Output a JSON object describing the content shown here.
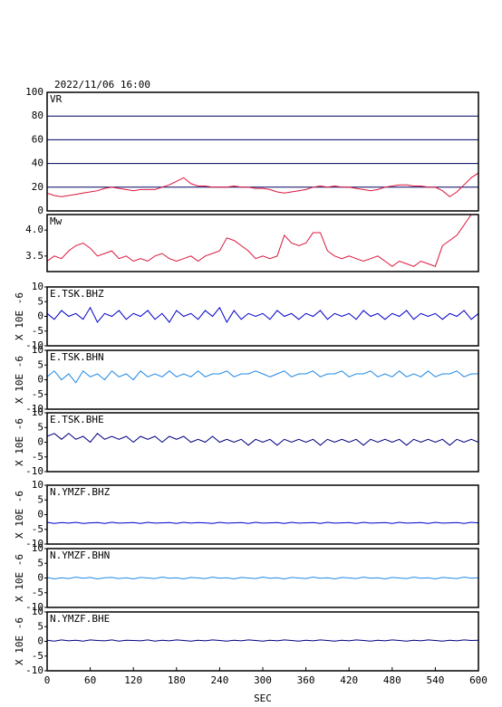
{
  "chart_data": [
    {
      "type": "line",
      "title": "2022/11/06 16:00",
      "label": "VR",
      "x": [
        0,
        10,
        20,
        30,
        40,
        50,
        60,
        70,
        80,
        90,
        100,
        110,
        120,
        130,
        140,
        150,
        160,
        170,
        180,
        190,
        200,
        210,
        220,
        230,
        240,
        250,
        260,
        270,
        280,
        290,
        300,
        310,
        320,
        330,
        340,
        350,
        360,
        370,
        380,
        390,
        400,
        410,
        420,
        430,
        440,
        450,
        460,
        470,
        480,
        490,
        500,
        510,
        520,
        530,
        540,
        550,
        560,
        570,
        580,
        590,
        600
      ],
      "series": [
        {
          "color": "#dc143c",
          "values": [
            15,
            13,
            12,
            13,
            14,
            15,
            16,
            17,
            19,
            20,
            19,
            18,
            17,
            18,
            18,
            18,
            20,
            22,
            25,
            28,
            23,
            21,
            21,
            20,
            20,
            20,
            21,
            20,
            20,
            19,
            19,
            18,
            16,
            15,
            16,
            17,
            18,
            20,
            21,
            20,
            21,
            20,
            20,
            19,
            18,
            17,
            18,
            20,
            21,
            22,
            22,
            21,
            21,
            20,
            20,
            17,
            12,
            16,
            22,
            28,
            32
          ]
        }
      ],
      "xlim": [
        0,
        600
      ],
      "ylim": [
        0,
        100
      ],
      "yticks": [
        0,
        20,
        40,
        60,
        80,
        100
      ],
      "grid": true
    },
    {
      "type": "line",
      "label": "Mw",
      "x": [
        0,
        10,
        20,
        30,
        40,
        50,
        60,
        70,
        80,
        90,
        100,
        110,
        120,
        130,
        140,
        150,
        160,
        170,
        180,
        190,
        200,
        210,
        220,
        230,
        240,
        250,
        260,
        270,
        280,
        290,
        300,
        310,
        320,
        330,
        340,
        350,
        360,
        370,
        380,
        390,
        400,
        410,
        420,
        430,
        440,
        450,
        460,
        470,
        480,
        490,
        500,
        510,
        520,
        530,
        540,
        550,
        560,
        570,
        580,
        590,
        600
      ],
      "series": [
        {
          "color": "#dc143c",
          "values": [
            3.4,
            3.5,
            3.45,
            3.6,
            3.7,
            3.75,
            3.65,
            3.5,
            3.55,
            3.6,
            3.45,
            3.5,
            3.4,
            3.45,
            3.4,
            3.5,
            3.55,
            3.45,
            3.4,
            3.45,
            3.5,
            3.4,
            3.5,
            3.55,
            3.6,
            3.85,
            3.8,
            3.7,
            3.6,
            3.45,
            3.5,
            3.45,
            3.5,
            3.9,
            3.75,
            3.7,
            3.75,
            3.95,
            3.95,
            3.6,
            3.5,
            3.45,
            3.5,
            3.45,
            3.4,
            3.45,
            3.5,
            3.4,
            3.3,
            3.4,
            3.35,
            3.3,
            3.4,
            3.35,
            3.3,
            3.7,
            3.8,
            3.9,
            4.1,
            4.3,
            4.3
          ]
        }
      ],
      "xlim": [
        0,
        600
      ],
      "ylim": [
        3.2,
        4.3
      ],
      "yticks": [
        3.5,
        {
          "value": 4,
          "label": "4.0"
        }
      ]
    },
    {
      "type": "line",
      "label": "E.TSK.BHZ",
      "ylabel": "X 10E -6",
      "x": [
        0,
        10,
        20,
        30,
        40,
        50,
        60,
        70,
        80,
        90,
        100,
        110,
        120,
        130,
        140,
        150,
        160,
        170,
        180,
        190,
        200,
        210,
        220,
        230,
        240,
        250,
        260,
        270,
        280,
        290,
        300,
        310,
        320,
        330,
        340,
        350,
        360,
        370,
        380,
        390,
        400,
        410,
        420,
        430,
        440,
        450,
        460,
        470,
        480,
        490,
        500,
        510,
        520,
        530,
        540,
        550,
        560,
        570,
        580,
        590,
        600
      ],
      "series": [
        {
          "color": "#0000cc",
          "values": [
            1,
            -1,
            2,
            0,
            1,
            -1,
            3,
            -2,
            1,
            0,
            2,
            -1,
            1,
            0,
            2,
            -1,
            1,
            -2,
            2,
            0,
            1,
            -1,
            2,
            0,
            3,
            -2,
            2,
            -1,
            1,
            0,
            1,
            -1,
            2,
            0,
            1,
            -1,
            1,
            0,
            2,
            -1,
            1,
            0,
            1,
            -1,
            2,
            0,
            1,
            -1,
            1,
            0,
            2,
            -1,
            1,
            0,
            1,
            -1,
            1,
            0,
            2,
            -1,
            1
          ]
        }
      ],
      "xlim": [
        0,
        600
      ],
      "ylim": [
        -10,
        10
      ],
      "yticks": [
        -10,
        -5,
        0,
        5,
        10
      ]
    },
    {
      "type": "line",
      "label": "E.TSK.BHN",
      "ylabel": "X 10E -6",
      "x": [
        0,
        10,
        20,
        30,
        40,
        50,
        60,
        70,
        80,
        90,
        100,
        110,
        120,
        130,
        140,
        150,
        160,
        170,
        180,
        190,
        200,
        210,
        220,
        230,
        240,
        250,
        260,
        270,
        280,
        290,
        300,
        310,
        320,
        330,
        340,
        350,
        360,
        370,
        380,
        390,
        400,
        410,
        420,
        430,
        440,
        450,
        460,
        470,
        480,
        490,
        500,
        510,
        520,
        530,
        540,
        550,
        560,
        570,
        580,
        590,
        600
      ],
      "series": [
        {
          "color": "#1e88e5",
          "values": [
            1,
            3,
            0,
            2,
            -1,
            3,
            1,
            2,
            0,
            3,
            1,
            2,
            0,
            3,
            1,
            2,
            1,
            3,
            1,
            2,
            1,
            3,
            1,
            2,
            2,
            3,
            1,
            2,
            2,
            3,
            2,
            1,
            2,
            3,
            1,
            2,
            2,
            3,
            1,
            2,
            2,
            3,
            1,
            2,
            2,
            3,
            1,
            2,
            1,
            3,
            1,
            2,
            1,
            3,
            1,
            2,
            2,
            3,
            1,
            2,
            2
          ]
        }
      ],
      "xlim": [
        0,
        600
      ],
      "ylim": [
        -10,
        10
      ],
      "yticks": [
        -10,
        -5,
        0,
        5,
        10
      ]
    },
    {
      "type": "line",
      "label": "E.TSK.BHE",
      "ylabel": "X 10E -6",
      "x": [
        0,
        10,
        20,
        30,
        40,
        50,
        60,
        70,
        80,
        90,
        100,
        110,
        120,
        130,
        140,
        150,
        160,
        170,
        180,
        190,
        200,
        210,
        220,
        230,
        240,
        250,
        260,
        270,
        280,
        290,
        300,
        310,
        320,
        330,
        340,
        350,
        360,
        370,
        380,
        390,
        400,
        410,
        420,
        430,
        440,
        450,
        460,
        470,
        480,
        490,
        500,
        510,
        520,
        530,
        540,
        550,
        560,
        570,
        580,
        590,
        600
      ],
      "series": [
        {
          "color": "#000080",
          "values": [
            2,
            3,
            1,
            3,
            1,
            2,
            0,
            3,
            1,
            2,
            1,
            2,
            0,
            2,
            1,
            2,
            0,
            2,
            1,
            2,
            0,
            1,
            0,
            2,
            0,
            1,
            0,
            1,
            -1,
            1,
            0,
            1,
            -1,
            1,
            0,
            1,
            0,
            1,
            -1,
            1,
            0,
            1,
            0,
            1,
            -1,
            1,
            0,
            1,
            0,
            1,
            -1,
            1,
            0,
            1,
            0,
            1,
            -1,
            1,
            0,
            1,
            0
          ]
        }
      ],
      "xlim": [
        0,
        600
      ],
      "ylim": [
        -10,
        10
      ],
      "yticks": [
        -10,
        -5,
        0,
        5,
        10
      ]
    },
    {
      "type": "line",
      "label": "N.YMZF.BHZ",
      "ylabel": "X 10E -6",
      "x": [
        0,
        10,
        20,
        30,
        40,
        50,
        60,
        70,
        80,
        90,
        100,
        110,
        120,
        130,
        140,
        150,
        160,
        170,
        180,
        190,
        200,
        210,
        220,
        230,
        240,
        250,
        260,
        270,
        280,
        290,
        300,
        310,
        320,
        330,
        340,
        350,
        360,
        370,
        380,
        390,
        400,
        410,
        420,
        430,
        440,
        450,
        460,
        470,
        480,
        490,
        500,
        510,
        520,
        530,
        540,
        550,
        560,
        570,
        580,
        590,
        600
      ],
      "series": [
        {
          "color": "#0000cc",
          "values": [
            -2.6,
            -3,
            -2.7,
            -2.9,
            -2.6,
            -3,
            -2.8,
            -2.7,
            -3,
            -2.6,
            -2.9,
            -2.8,
            -2.7,
            -3,
            -2.6,
            -2.9,
            -2.8,
            -2.7,
            -3,
            -2.6,
            -2.9,
            -2.7,
            -2.8,
            -3,
            -2.6,
            -2.9,
            -2.8,
            -2.7,
            -3,
            -2.6,
            -2.9,
            -2.8,
            -2.7,
            -3,
            -2.6,
            -2.9,
            -2.8,
            -2.7,
            -3,
            -2.6,
            -2.9,
            -2.8,
            -2.7,
            -3,
            -2.6,
            -2.9,
            -2.8,
            -2.7,
            -3,
            -2.6,
            -2.9,
            -2.8,
            -2.7,
            -3,
            -2.6,
            -2.9,
            -2.8,
            -2.7,
            -3,
            -2.6,
            -2.8
          ]
        }
      ],
      "xlim": [
        0,
        600
      ],
      "ylim": [
        -10,
        10
      ],
      "yticks": [
        -10,
        -5,
        0,
        5,
        10
      ]
    },
    {
      "type": "line",
      "label": "N.YMZF.BHN",
      "ylabel": "X 10E -6",
      "x": [
        0,
        10,
        20,
        30,
        40,
        50,
        60,
        70,
        80,
        90,
        100,
        110,
        120,
        130,
        140,
        150,
        160,
        170,
        180,
        190,
        200,
        210,
        220,
        230,
        240,
        250,
        260,
        270,
        280,
        290,
        300,
        310,
        320,
        330,
        340,
        350,
        360,
        370,
        380,
        390,
        400,
        410,
        420,
        430,
        440,
        450,
        460,
        470,
        480,
        490,
        500,
        510,
        520,
        530,
        540,
        550,
        560,
        570,
        580,
        590,
        600
      ],
      "series": [
        {
          "color": "#1e88e5",
          "values": [
            0.2,
            -0.3,
            0.1,
            -0.2,
            0.3,
            -0.1,
            0.2,
            -0.3,
            0.1,
            0.2,
            -0.2,
            0.1,
            -0.3,
            0.2,
            0,
            -0.2,
            0.3,
            -0.1,
            0.1,
            -0.3,
            0.2,
            0,
            -0.2,
            0.3,
            -0.1,
            0.1,
            -0.3,
            0.2,
            0,
            -0.2,
            0.3,
            -0.1,
            0.1,
            -0.3,
            0.2,
            0,
            -0.2,
            0.3,
            -0.1,
            0.1,
            -0.3,
            0.2,
            0,
            -0.2,
            0.3,
            -0.1,
            0.1,
            -0.3,
            0.2,
            0,
            -0.2,
            0.3,
            -0.1,
            0.1,
            -0.3,
            0.2,
            0,
            -0.2,
            0.3,
            -0.1,
            0.1
          ]
        }
      ],
      "xlim": [
        0,
        600
      ],
      "ylim": [
        -10,
        10
      ],
      "yticks": [
        -10,
        -5,
        0,
        5,
        10
      ]
    },
    {
      "type": "line",
      "label": "N.YMZF.BHE",
      "ylabel": "X 10E -6",
      "xlabel": "SEC",
      "x": [
        0,
        10,
        20,
        30,
        40,
        50,
        60,
        70,
        80,
        90,
        100,
        110,
        120,
        130,
        140,
        150,
        160,
        170,
        180,
        190,
        200,
        210,
        220,
        230,
        240,
        250,
        260,
        270,
        280,
        290,
        300,
        310,
        320,
        330,
        340,
        350,
        360,
        370,
        380,
        390,
        400,
        410,
        420,
        430,
        440,
        450,
        460,
        470,
        480,
        490,
        500,
        510,
        520,
        530,
        540,
        550,
        560,
        570,
        580,
        590,
        600
      ],
      "series": [
        {
          "color": "#000080",
          "values": [
            0.4,
            0.1,
            0.5,
            0.2,
            0.4,
            0.1,
            0.5,
            0.3,
            0.2,
            0.5,
            0.1,
            0.4,
            0.3,
            0.2,
            0.5,
            0.1,
            0.4,
            0.2,
            0.5,
            0.3,
            0.1,
            0.4,
            0.2,
            0.5,
            0.3,
            0.1,
            0.4,
            0.2,
            0.5,
            0.3,
            0.1,
            0.4,
            0.2,
            0.5,
            0.3,
            0.1,
            0.4,
            0.2,
            0.5,
            0.3,
            0.1,
            0.4,
            0.2,
            0.5,
            0.3,
            0.1,
            0.4,
            0.2,
            0.5,
            0.3,
            0.1,
            0.4,
            0.2,
            0.5,
            0.3,
            0.1,
            0.4,
            0.2,
            0.5,
            0.3,
            0.4
          ]
        }
      ],
      "xlim": [
        0,
        600
      ],
      "ylim": [
        -10,
        10
      ],
      "yticks": [
        -10,
        -5,
        0,
        5,
        10
      ],
      "xticks": [
        0,
        60,
        120,
        180,
        240,
        300,
        360,
        420,
        480,
        540,
        600
      ]
    }
  ]
}
